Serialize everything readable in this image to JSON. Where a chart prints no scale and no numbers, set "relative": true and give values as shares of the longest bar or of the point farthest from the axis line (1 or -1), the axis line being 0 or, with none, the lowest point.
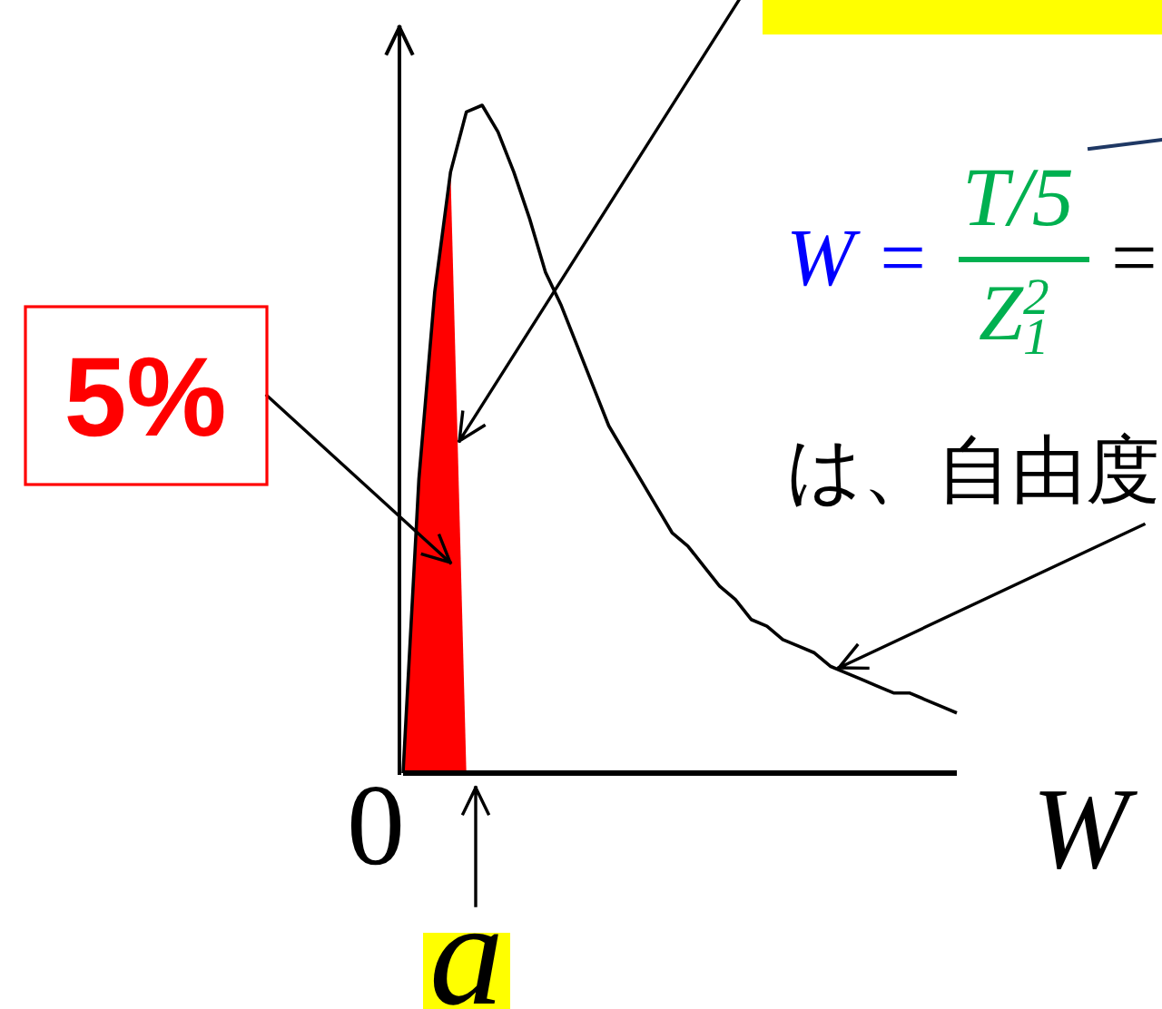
{
  "chart_data": {
    "type": "line",
    "xlabel": "W",
    "relative": true,
    "categories": [
      null,
      null,
      null,
      null,
      null,
      null,
      null,
      null,
      null,
      null,
      null,
      null,
      null,
      null,
      null,
      null,
      null,
      null,
      null,
      null,
      null,
      null,
      null,
      null,
      null,
      null,
      null,
      null,
      null,
      null,
      null,
      null,
      null,
      null,
      null,
      null
    ],
    "series": [
      {
        "type": "area",
        "color": "#ff0000",
        "values": [
          0,
          0.44,
          0.72,
          0.9,
          0,
          null,
          null,
          null,
          null,
          null,
          null,
          null,
          null,
          null,
          null,
          null,
          null,
          null,
          null,
          null,
          null,
          null,
          null,
          null,
          null,
          null,
          null,
          null,
          null,
          null,
          null,
          null,
          null,
          null,
          null,
          null
        ]
      },
      {
        "type": "line",
        "color": "#000000",
        "values": [
          0,
          0.44,
          0.72,
          0.9,
          0.99,
          1,
          0.96,
          0.9,
          0.83,
          0.75,
          0.7,
          0.64,
          0.58,
          0.52,
          0.48,
          0.44,
          0.4,
          0.36,
          0.34,
          0.31,
          0.28,
          0.26,
          0.23,
          0.22,
          0.2,
          0.19,
          0.18,
          0.16,
          0.15,
          0.14,
          0.13,
          0.12,
          0.12,
          0.11,
          0.1,
          0.09
        ]
      }
    ],
    "annotations": [
      "5%",
      "0",
      "a",
      "W =",
      "T/5",
      "Z$_{1}$$^{2}$",
      "=",
      "は、自由度"
    ]
  }
}
